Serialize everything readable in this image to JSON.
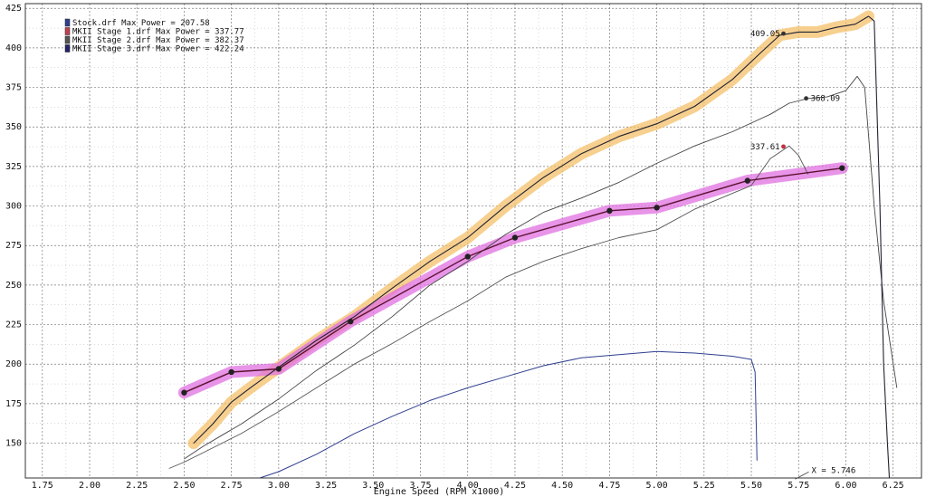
{
  "chart_data": {
    "type": "line",
    "xlabel": "Engine Speed (RPM x1000)",
    "xlim": [
      1.66,
      6.4
    ],
    "ylim": [
      128,
      428
    ],
    "xticks": [
      "1.75",
      "2.00",
      "2.25",
      "2.50",
      "2.75",
      "3.00",
      "3.25",
      "3.50",
      "3.75",
      "4.00",
      "4.25",
      "4.50",
      "4.75",
      "5.00",
      "5.25",
      "5.50",
      "5.75",
      "6.00",
      "6.25"
    ],
    "yticks": [
      "150",
      "175",
      "200",
      "225",
      "250",
      "275",
      "300",
      "325",
      "350",
      "375",
      "400",
      "425"
    ],
    "grid": true,
    "legend_position": "top-left",
    "legend": [
      {
        "label": "Stock.drf Max Power = 207.58",
        "color": "#2f3f8f"
      },
      {
        "label": "MKII Stage 1.drf Max Power = 337.77",
        "color": "#c04050"
      },
      {
        "label": "MKII Stage 2.drf Max Power = 382.37",
        "color": "#555555"
      },
      {
        "label": "MKII Stage 3.drf Max Power = 422.24",
        "color": "#222266"
      }
    ],
    "series": [
      {
        "name": "Stock.drf Max Power = 207.58",
        "color": "#2f3f8f",
        "x": [
          2.9,
          3.0,
          3.2,
          3.4,
          3.6,
          3.8,
          4.0,
          4.2,
          4.4,
          4.6,
          4.8,
          5.0,
          5.2,
          5.4,
          5.5,
          5.52,
          5.53
        ],
        "y": [
          128,
          132,
          143,
          156,
          167,
          177,
          185,
          192,
          199,
          204,
          206,
          208,
          207,
          205,
          203,
          195,
          139
        ]
      },
      {
        "name": "MKII Stage 1.drf Max Power = 337.77",
        "color": "#555555",
        "x": [
          2.42,
          2.5,
          2.6,
          2.7,
          2.8,
          2.9,
          3.0,
          3.2,
          3.4,
          3.6,
          3.8,
          4.0,
          4.2,
          4.4,
          4.6,
          4.8,
          5.0,
          5.2,
          5.4,
          5.5,
          5.6,
          5.7,
          5.75,
          5.8
        ],
        "y": [
          134,
          138,
          144,
          150,
          156,
          163,
          170,
          185,
          200,
          213,
          227,
          240,
          255,
          265,
          273,
          280,
          285,
          298,
          308,
          313,
          330,
          338,
          332,
          320
        ]
      },
      {
        "name": "MKII Stage 2.drf Max Power = 382.37",
        "color": "#444444",
        "x": [
          2.5,
          2.6,
          2.7,
          2.8,
          2.9,
          3.0,
          3.2,
          3.4,
          3.6,
          3.8,
          4.0,
          4.2,
          4.4,
          4.6,
          4.8,
          5.0,
          5.2,
          5.4,
          5.6,
          5.7,
          5.8,
          5.9,
          6.0,
          6.06,
          6.1,
          6.15,
          6.2,
          6.27
        ],
        "y": [
          140,
          148,
          155,
          162,
          170,
          178,
          196,
          212,
          230,
          250,
          265,
          282,
          296,
          305,
          315,
          327,
          338,
          347,
          358,
          365,
          368,
          369,
          373,
          382,
          375,
          300,
          240,
          185
        ]
      },
      {
        "name": "MKII Stage 3.drf Max Power = 422.24",
        "color": "#222233",
        "x": [
          2.55,
          2.65,
          2.75,
          2.85,
          3.0,
          3.2,
          3.4,
          3.6,
          3.8,
          4.0,
          4.2,
          4.4,
          4.6,
          4.8,
          5.0,
          5.2,
          5.4,
          5.55,
          5.65,
          5.75,
          5.85,
          5.95,
          6.05,
          6.12,
          6.15,
          6.18,
          6.2,
          6.22,
          6.23
        ],
        "y": [
          150,
          162,
          176,
          185,
          198,
          215,
          230,
          248,
          265,
          280,
          300,
          318,
          333,
          344,
          352,
          363,
          380,
          397,
          408,
          410,
          410,
          413,
          415,
          420,
          417,
          300,
          200,
          150,
          128
        ]
      },
      {
        "name": "",
        "color": "#5b1230",
        "x": [
          2.5,
          2.75,
          3.0,
          3.38,
          4.0,
          4.25,
          4.75,
          5.0,
          5.48,
          5.98
        ],
        "y": [
          182,
          195,
          197,
          227,
          268,
          280,
          297,
          299,
          316,
          324
        ]
      }
    ],
    "annotations": [
      {
        "text": "409.05",
        "x": 5.67,
        "y": 409.05
      },
      {
        "text": "368.09",
        "x": 5.79,
        "y": 368.09
      },
      {
        "text": "337.61",
        "x": 5.67,
        "y": 337.61
      },
      {
        "text": "X = 5.746",
        "x": 5.78,
        "y": 133
      }
    ]
  }
}
